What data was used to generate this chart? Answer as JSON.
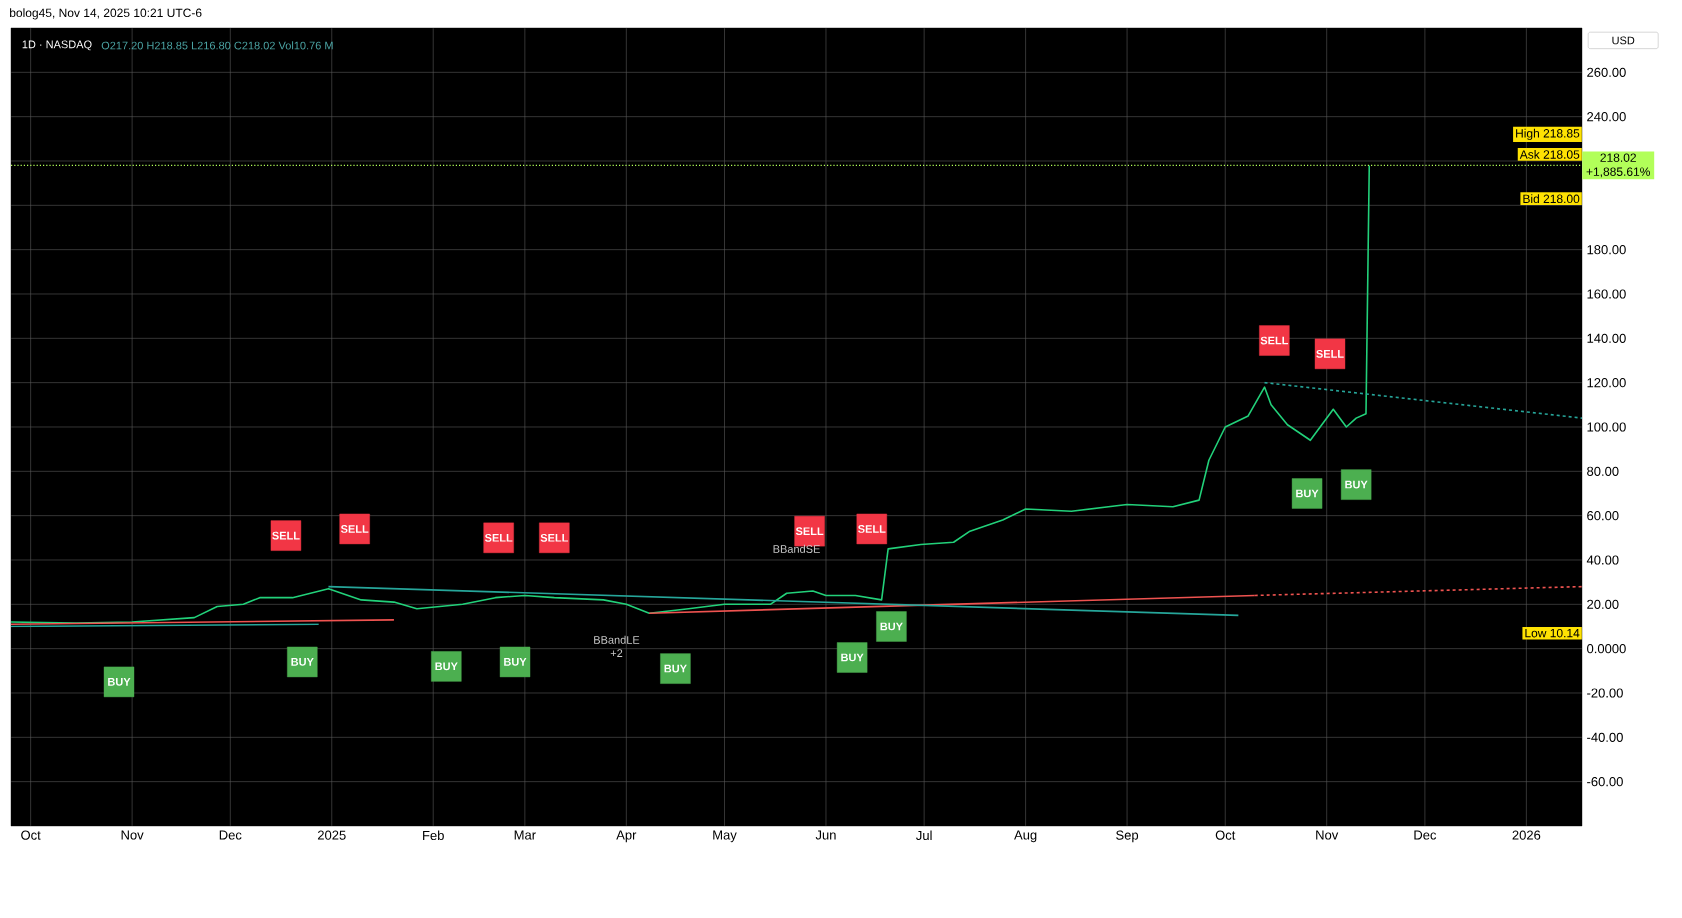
{
  "chart_data": {
    "type": "line",
    "title": "1D · NASDAQ",
    "annotations": [
      "O217.20 H218.85 L216.80 C218.02 Vol10.76 M",
      "USD",
      "bolog45, Nov 14, 2025 10:21 UTC-6",
      "High 218.85",
      "Ask 218.05",
      "Bid 218.00",
      "Low 10.14",
      "BBandLE",
      "+2",
      "BBandSE",
      {
        "text": "BUY",
        "x": "2024-10-28",
        "y": -15
      },
      {
        "text": "SELL",
        "x": "2024-12-18",
        "y": 51
      },
      {
        "text": "SELL",
        "x": "2025-01-08",
        "y": 54
      },
      {
        "text": "BUY",
        "x": "2024-12-23",
        "y": -6
      },
      {
        "text": "BUY",
        "x": "2025-02-05",
        "y": -8
      },
      {
        "text": "SELL",
        "x": "2025-02-21",
        "y": 50
      },
      {
        "text": "BUY",
        "x": "2025-02-26",
        "y": -6
      },
      {
        "text": "SELL",
        "x": "2025-03-10",
        "y": 50
      },
      {
        "text": "BUY",
        "x": "2025-04-16",
        "y": -9
      },
      {
        "text": "SELL",
        "x": "2025-05-27",
        "y": 53
      },
      {
        "text": "BUY",
        "x": "2025-06-09",
        "y": -4
      },
      {
        "text": "SELL",
        "x": "2025-06-15",
        "y": 54
      },
      {
        "text": "BUY",
        "x": "2025-06-21",
        "y": 10
      },
      {
        "text": "SELL",
        "x": "2025-10-16",
        "y": 139
      },
      {
        "text": "SELL",
        "x": "2025-11-02",
        "y": 133
      },
      {
        "text": "BUY",
        "x": "2025-10-26",
        "y": 70
      },
      {
        "text": "BUY",
        "x": "2025-11-10",
        "y": 74
      }
    ],
    "xlim": [
      "2024-09-25",
      "2026-01-18"
    ],
    "xticks": [
      {
        "value": "2024-10-01",
        "label": "Oct"
      },
      {
        "value": "2024-11-01",
        "label": "Nov"
      },
      {
        "value": "2024-12-01",
        "label": "Dec"
      },
      {
        "value": "2025-01-01",
        "label": "2025"
      },
      {
        "value": "2025-02-01",
        "label": "Feb"
      },
      {
        "value": "2025-03-01",
        "label": "Mar"
      },
      {
        "value": "2025-04-01",
        "label": "Apr"
      },
      {
        "value": "2025-05-01",
        "label": "May"
      },
      {
        "value": "2025-06-01",
        "label": "Jun"
      },
      {
        "value": "2025-07-01",
        "label": "Jul"
      },
      {
        "value": "2025-08-01",
        "label": "Aug"
      },
      {
        "value": "2025-09-01",
        "label": "Sep"
      },
      {
        "value": "2025-10-01",
        "label": "Oct"
      },
      {
        "value": "2025-11-01",
        "label": "Nov"
      },
      {
        "value": "2025-12-01",
        "label": "Dec"
      },
      {
        "value": "2026-01-01",
        "label": "2026"
      }
    ],
    "ylim": [
      -80,
      280
    ],
    "yticks": [
      {
        "value": -60,
        "label": "-60.00"
      },
      {
        "value": -40,
        "label": "-40.00"
      },
      {
        "value": -20,
        "label": "-20.00"
      },
      {
        "value": 0,
        "label": "0.0000"
      },
      {
        "value": 20,
        "label": "20.00"
      },
      {
        "value": 40,
        "label": "40.00"
      },
      {
        "value": 60,
        "label": "60.00"
      },
      {
        "value": 80,
        "label": "80.00"
      },
      {
        "value": 100,
        "label": "100.00"
      },
      {
        "value": 120,
        "label": "120.00"
      },
      {
        "value": 140,
        "label": "140.00"
      },
      {
        "value": 160,
        "label": "160.00"
      },
      {
        "value": 180,
        "label": "180.00"
      },
      {
        "value": 200,
        "label": null
      },
      {
        "value": 220,
        "label": null
      },
      {
        "value": 240,
        "label": "240.00"
      },
      {
        "value": 260,
        "label": "260.00"
      }
    ],
    "grid": true,
    "ref_lines": [
      {
        "axis": "y",
        "value": 218.02,
        "label": "218.02 +1,885.61%",
        "color": "#b2ff59",
        "line_style": "dotted"
      }
    ],
    "series": [
      {
        "color": "#22d17a",
        "marker": "none",
        "line_style": "solid",
        "x": [
          "2024-09-25",
          "2024-10-15",
          "2024-11-01",
          "2024-11-20",
          "2024-11-27",
          "2024-12-05",
          "2024-12-10",
          "2024-12-20",
          "2024-12-31",
          "2025-01-10",
          "2025-01-20",
          "2025-01-27",
          "2025-02-10",
          "2025-02-20",
          "2025-03-01",
          "2025-03-10",
          "2025-03-25",
          "2025-04-01",
          "2025-04-08",
          "2025-04-20",
          "2025-05-01",
          "2025-05-15",
          "2025-05-20",
          "2025-05-28",
          "2025-06-01",
          "2025-06-10",
          "2025-06-18",
          "2025-06-20",
          "2025-06-30",
          "2025-07-10",
          "2025-07-15",
          "2025-07-25",
          "2025-08-01",
          "2025-08-15",
          "2025-09-01",
          "2025-09-15",
          "2025-09-23",
          "2025-09-26",
          "2025-10-01",
          "2025-10-08",
          "2025-10-13",
          "2025-10-15",
          "2025-10-20",
          "2025-10-27",
          "2025-11-03",
          "2025-11-07",
          "2025-11-10",
          "2025-11-13",
          "2025-11-14"
        ],
        "values": [
          12,
          11.5,
          12,
          14,
          19,
          20,
          23,
          23,
          27,
          22,
          21,
          18,
          20,
          23,
          24,
          23,
          22,
          20,
          16,
          18,
          20,
          20,
          25,
          26,
          24,
          24,
          22,
          45,
          47,
          48,
          53,
          58,
          63,
          62,
          65,
          64,
          67,
          85,
          100,
          105,
          118,
          110,
          101,
          94,
          108,
          100,
          104,
          106,
          218
        ]
      },
      {
        "color": "#26a69a",
        "marker": "none",
        "line_style": "dashed",
        "x": [
          "2025-10-13",
          "2026-01-18"
        ],
        "values": [
          120,
          104
        ]
      },
      {
        "color": "#ef5350",
        "marker": "none",
        "line_style": "solid",
        "x": [
          "2025-04-08",
          "2025-10-10"
        ],
        "values": [
          16,
          24
        ]
      },
      {
        "color": "#ef5350",
        "marker": "none",
        "line_style": "dashed",
        "x": [
          "2025-10-10",
          "2026-01-18"
        ],
        "values": [
          24,
          28
        ]
      },
      {
        "color": "#26a69a",
        "marker": "none",
        "line_style": "solid",
        "x": [
          "2024-12-31",
          "2025-10-05"
        ],
        "values": [
          28,
          15
        ]
      },
      {
        "color": "#ef5350",
        "marker": "none",
        "line_style": "solid",
        "x": [
          "2024-09-25",
          "2025-01-20"
        ],
        "values": [
          11,
          13
        ]
      },
      {
        "color": "#26a69a",
        "marker": "none",
        "line_style": "solid",
        "x": [
          "2024-09-25",
          "2024-12-28"
        ],
        "values": [
          10,
          11
        ]
      },
      {
        "type": "scatter",
        "color": "#4caf50",
        "marker": "square",
        "x": [
          "2024-10-28",
          "2024-12-23",
          "2025-02-05",
          "2025-02-26",
          "2025-04-16",
          "2025-06-09",
          "2025-06-21",
          "2025-10-26",
          "2025-11-10"
        ],
        "values": [
          -15,
          -6,
          -8,
          -6,
          -9,
          -4,
          10,
          70,
          74
        ]
      },
      {
        "type": "scatter",
        "color": "#f23645",
        "marker": "square",
        "x": [
          "2024-12-18",
          "2025-01-08",
          "2025-02-21",
          "2025-03-10",
          "2025-05-27",
          "2025-06-15",
          "2025-10-16",
          "2025-11-02"
        ],
        "values": [
          51,
          54,
          50,
          50,
          53,
          54,
          139,
          133
        ]
      }
    ]
  }
}
